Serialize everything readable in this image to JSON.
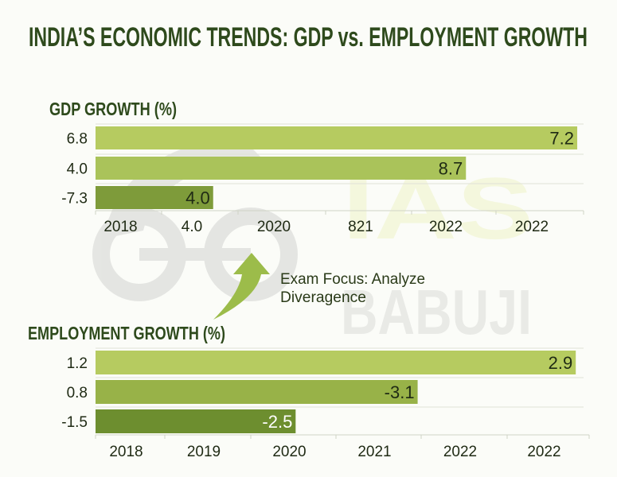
{
  "title": "INDIA’S ECONOMIC TRENDS: GDP vs. EMPLOYMENT GROWTH",
  "watermark": {
    "text_top": "IAS",
    "text_bottom": "BABUJI"
  },
  "annotation": {
    "line1": "Exam Focus: Analyze",
    "line2": "Diveragence",
    "arrow_color": "#9cbc4a"
  },
  "colors": {
    "title": "#2e4a1c",
    "text": "#1f2a14",
    "grid": "#d9dccf"
  },
  "chart_data": [
    {
      "type": "bar",
      "orientation": "horizontal",
      "title": "GDP GROWTH (%)",
      "categories": [
        "6.8",
        "4.0",
        "-7.3"
      ],
      "data_labels": [
        "7.2",
        "8.7",
        "4.0"
      ],
      "bar_length_fraction": [
        0.987,
        0.759,
        0.241
      ],
      "bar_colors": [
        "#b6cb60",
        "#aac35a",
        "#7e9b3a"
      ],
      "label_colors": [
        "#1f2a14",
        "#1f2a14",
        "#1f2a14"
      ],
      "x_tick_labels": [
        "2018",
        "4.0",
        "2020",
        "821",
        "2022",
        "2022"
      ],
      "grid": true
    },
    {
      "type": "bar",
      "orientation": "horizontal",
      "title": "EMPLOYMENT GROWTH (%)",
      "categories": [
        "1.2",
        "0.8",
        "-1.5"
      ],
      "data_labels": [
        "2.9",
        "-3.1",
        "-2.5"
      ],
      "bar_length_fraction": [
        0.984,
        0.66,
        0.41
      ],
      "bar_colors": [
        "#b6cb60",
        "#98b248",
        "#6d8e2f"
      ],
      "label_colors": [
        "#1f2a14",
        "#1f2a14",
        "#ffffff"
      ],
      "x_tick_labels": [
        "2018",
        "2019",
        "2020",
        "2021",
        "2022",
        "2022"
      ],
      "grid": true
    }
  ]
}
